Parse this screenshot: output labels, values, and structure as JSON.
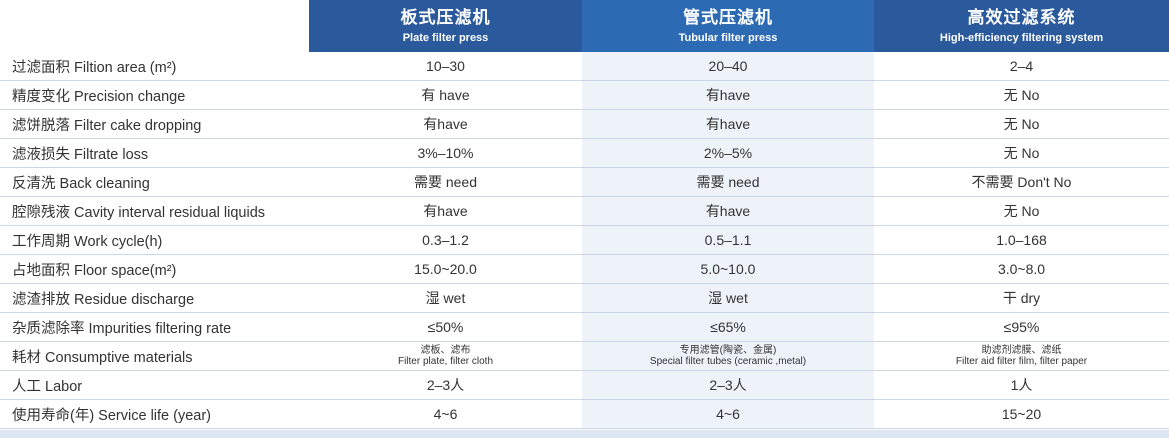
{
  "header": {
    "columns": [
      {
        "cn": "板式压滤机",
        "en": "Plate filter press"
      },
      {
        "cn": "管式压滤机",
        "en": "Tubular filter press"
      },
      {
        "cn": "高效过滤系统",
        "en": "High-efficiency filtering system"
      }
    ]
  },
  "rows": [
    {
      "label": "过滤面积 Filtion  area (m²)",
      "v": [
        "10–30",
        "20–40",
        "2–4"
      ]
    },
    {
      "label": "精度变化 Precision change",
      "v": [
        "有 have",
        "有have",
        "无 No"
      ]
    },
    {
      "label": "滤饼脱落 Filter cake dropping",
      "v": [
        "有have",
        "有have",
        "无 No"
      ]
    },
    {
      "label": "滤液损失 Filtrate loss",
      "v": [
        "3%–10%",
        "2%–5%",
        "无 No"
      ]
    },
    {
      "label": "反清洗 Back cleaning",
      "v": [
        "需要 need",
        "需要 need",
        "不需要 Don't No"
      ]
    },
    {
      "label": "腔隙残液 Cavity interval residual liquids",
      "v": [
        "有have",
        "有have",
        "无 No"
      ]
    },
    {
      "label": "工作周期 Work cycle(h)",
      "v": [
        "0.3–1.2",
        "0.5–1.1",
        "1.0–168"
      ]
    },
    {
      "label": "占地面积 Floor space(m²)",
      "v": [
        "15.0~20.0",
        "5.0~10.0",
        "3.0~8.0"
      ]
    },
    {
      "label": "滤渣排放 Residue discharge",
      "v": [
        "湿 wet",
        "湿 wet",
        "干 dry"
      ]
    },
    {
      "label": "杂质滤除率 Impurities filtering rate",
      "v": [
        "≤50%",
        "≤65%",
        "≤95%"
      ]
    },
    {
      "label": "耗材 Consumptive materials",
      "small": [
        {
          "cn": "滤板、滤布",
          "en": "Filter plate, filter cloth"
        },
        {
          "cn": "专用滤管(陶瓷、金属)",
          "en": "Special filter tubes (ceramic ,metal)"
        },
        {
          "cn": "助滤剂滤膜、滤纸",
          "en": "Filter aid filter film, filter paper"
        }
      ]
    },
    {
      "label": "人工 Labor",
      "v": [
        "2–3人",
        "2–3人",
        "1人"
      ]
    },
    {
      "label": "使用寿命(年) Service life (year)",
      "v": [
        "4~6",
        "4~6",
        "15~20"
      ]
    }
  ]
}
